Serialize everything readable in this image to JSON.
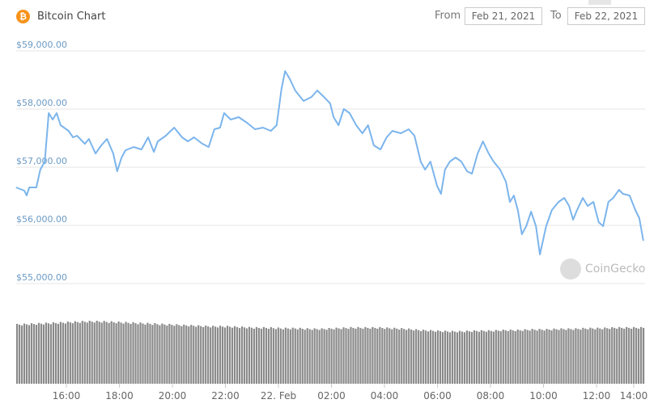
{
  "header": {
    "title": "Bitcoin Chart",
    "icon": "bitcoin-icon",
    "from_label": "From",
    "from_value": "Feb 21, 2021",
    "to_label": "To",
    "to_value": "Feb 22, 2021"
  },
  "watermark": "CoinGecko",
  "chart_data": {
    "type": "line",
    "title": "Bitcoin Chart",
    "line_color": "#7cb5ec",
    "volume_color": "#8a8a8a",
    "ylim": [
      55000,
      59000
    ],
    "y_ticks": [
      "$59,000.00",
      "$58,000.00",
      "$57,000.00",
      "$56,000.00",
      "$55,000.00"
    ],
    "y_tick_values": [
      59000,
      58000,
      57000,
      56000,
      55000
    ],
    "x_ticks": [
      "16:00",
      "18:00",
      "20:00",
      "22:00",
      "22. Feb",
      "02:00",
      "04:00",
      "06:00",
      "08:00",
      "10:00",
      "12:00",
      "14:00"
    ],
    "grid": "horizontal",
    "x_start": "2021-02-21 14:06",
    "x_end": "2021-02-22 13:50",
    "series": [
      {
        "x": [
          "2021-02-21 14:06",
          "2021-02-21 14:25",
          "2021-02-21 14:30",
          "2021-02-21 14:36",
          "2021-02-21 14:52",
          "2021-02-21 15:01",
          "2021-02-21 15:11",
          "2021-02-21 15:20",
          "2021-02-21 15:29",
          "2021-02-21 15:38",
          "2021-02-21 15:47",
          "2021-02-21 16:05",
          "2021-02-21 16:15",
          "2021-02-21 16:24",
          "2021-02-21 16:42",
          "2021-02-21 16:51",
          "2021-02-21 17:06",
          "2021-02-21 17:19",
          "2021-02-21 17:32",
          "2021-02-21 17:46",
          "2021-02-21 17:55",
          "2021-02-21 18:05",
          "2021-02-21 18:14",
          "2021-02-21 18:32",
          "2021-02-21 18:50",
          "2021-02-21 19:05",
          "2021-02-21 19:18",
          "2021-02-21 19:27",
          "2021-02-21 19:45",
          "2021-02-21 20:04",
          "2021-02-21 20:22",
          "2021-02-21 20:35",
          "2021-02-21 20:49",
          "2021-02-21 21:08",
          "2021-02-21 21:22",
          "2021-02-21 21:35",
          "2021-02-21 21:48",
          "2021-02-21 21:57",
          "2021-02-21 22:12",
          "2021-02-21 22:30",
          "2021-02-21 22:49",
          "2021-02-21 23:07",
          "2021-02-21 23:25",
          "2021-02-21 23:43",
          "2021-02-21 23:56",
          "2021-02-22 00:07",
          "2021-02-22 00:15",
          "2021-02-22 00:26",
          "2021-02-22 00:38",
          "2021-02-22 00:57",
          "2021-02-22 01:15",
          "2021-02-22 01:28",
          "2021-02-22 01:43",
          "2021-02-22 01:57",
          "2021-02-22 02:05",
          "2021-02-22 02:16",
          "2021-02-22 02:28",
          "2021-02-22 02:41",
          "2021-02-22 02:56",
          "2021-02-22 03:10",
          "2021-02-22 03:23",
          "2021-02-22 03:36",
          "2021-02-22 03:51",
          "2021-02-22 04:05",
          "2021-02-22 04:18",
          "2021-02-22 04:37",
          "2021-02-22 04:55",
          "2021-02-22 05:08",
          "2021-02-22 05:22",
          "2021-02-22 05:32",
          "2021-02-22 05:44",
          "2021-02-22 05:59",
          "2021-02-22 06:08",
          "2021-02-22 06:17",
          "2021-02-22 06:28",
          "2021-02-22 06:41",
          "2021-02-22 06:54",
          "2021-02-22 07:07",
          "2021-02-22 07:18",
          "2021-02-22 07:31",
          "2021-02-22 07:43",
          "2021-02-22 07:56",
          "2021-02-22 08:07",
          "2021-02-22 08:22",
          "2021-02-22 08:35",
          "2021-02-22 08:44",
          "2021-02-22 08:53",
          "2021-02-22 09:02",
          "2021-02-22 09:11",
          "2021-02-22 09:21",
          "2021-02-22 09:32",
          "2021-02-22 09:43",
          "2021-02-22 09:52",
          "2021-02-22 10:06",
          "2021-02-22 10:19",
          "2021-02-22 10:34",
          "2021-02-22 10:47",
          "2021-02-22 10:58",
          "2021-02-22 11:07",
          "2021-02-22 11:16",
          "2021-02-22 11:29",
          "2021-02-22 11:40",
          "2021-02-22 11:53",
          "2021-02-22 12:05",
          "2021-02-22 12:15",
          "2021-02-22 12:27",
          "2021-02-22 12:38",
          "2021-02-22 12:51",
          "2021-02-22 13:00",
          "2021-02-22 13:15",
          "2021-02-22 13:28",
          "2021-02-22 13:37",
          "2021-02-22 13:46"
        ],
        "values": [
          56653,
          56597,
          56514,
          56653,
          56653,
          56958,
          57097,
          57931,
          57819,
          57931,
          57722,
          57625,
          57514,
          57542,
          57403,
          57486,
          57236,
          57375,
          57486,
          57236,
          56931,
          57167,
          57292,
          57347,
          57306,
          57514,
          57264,
          57444,
          57542,
          57681,
          57514,
          57444,
          57514,
          57403,
          57347,
          57653,
          57681,
          57931,
          57819,
          57861,
          57764,
          57653,
          57681,
          57625,
          57722,
          58347,
          58653,
          58514,
          58319,
          58139,
          58208,
          58319,
          58208,
          58097,
          57861,
          57722,
          58000,
          57931,
          57722,
          57583,
          57722,
          57375,
          57306,
          57514,
          57625,
          57583,
          57653,
          57542,
          57097,
          56958,
          57097,
          56681,
          56542,
          56958,
          57097,
          57167,
          57097,
          56931,
          56889,
          57236,
          57444,
          57236,
          57097,
          56958,
          56750,
          56403,
          56514,
          56264,
          55847,
          55986,
          56236,
          55986,
          55500,
          55986,
          56264,
          56403,
          56472,
          56333,
          56097,
          56264,
          56472,
          56333,
          56403,
          56056,
          55986,
          56403,
          56472,
          56611,
          56542,
          56514,
          56264,
          56125,
          55736
        ]
      }
    ],
    "volume_relative": [
      0.95,
      0.96,
      0.97,
      0.98,
      0.99,
      1.0,
      1.0,
      0.99,
      0.98,
      0.97,
      0.96,
      0.95,
      0.94,
      0.93,
      0.92,
      0.92,
      0.91,
      0.9,
      0.9,
      0.89,
      0.89,
      0.88,
      0.88,
      0.89,
      0.9,
      0.9,
      0.9,
      0.89,
      0.88,
      0.86,
      0.85,
      0.84,
      0.84,
      0.85,
      0.85,
      0.86,
      0.86,
      0.87,
      0.87,
      0.88,
      0.88,
      0.89,
      0.89,
      0.9,
      0.9,
      0.9
    ]
  }
}
